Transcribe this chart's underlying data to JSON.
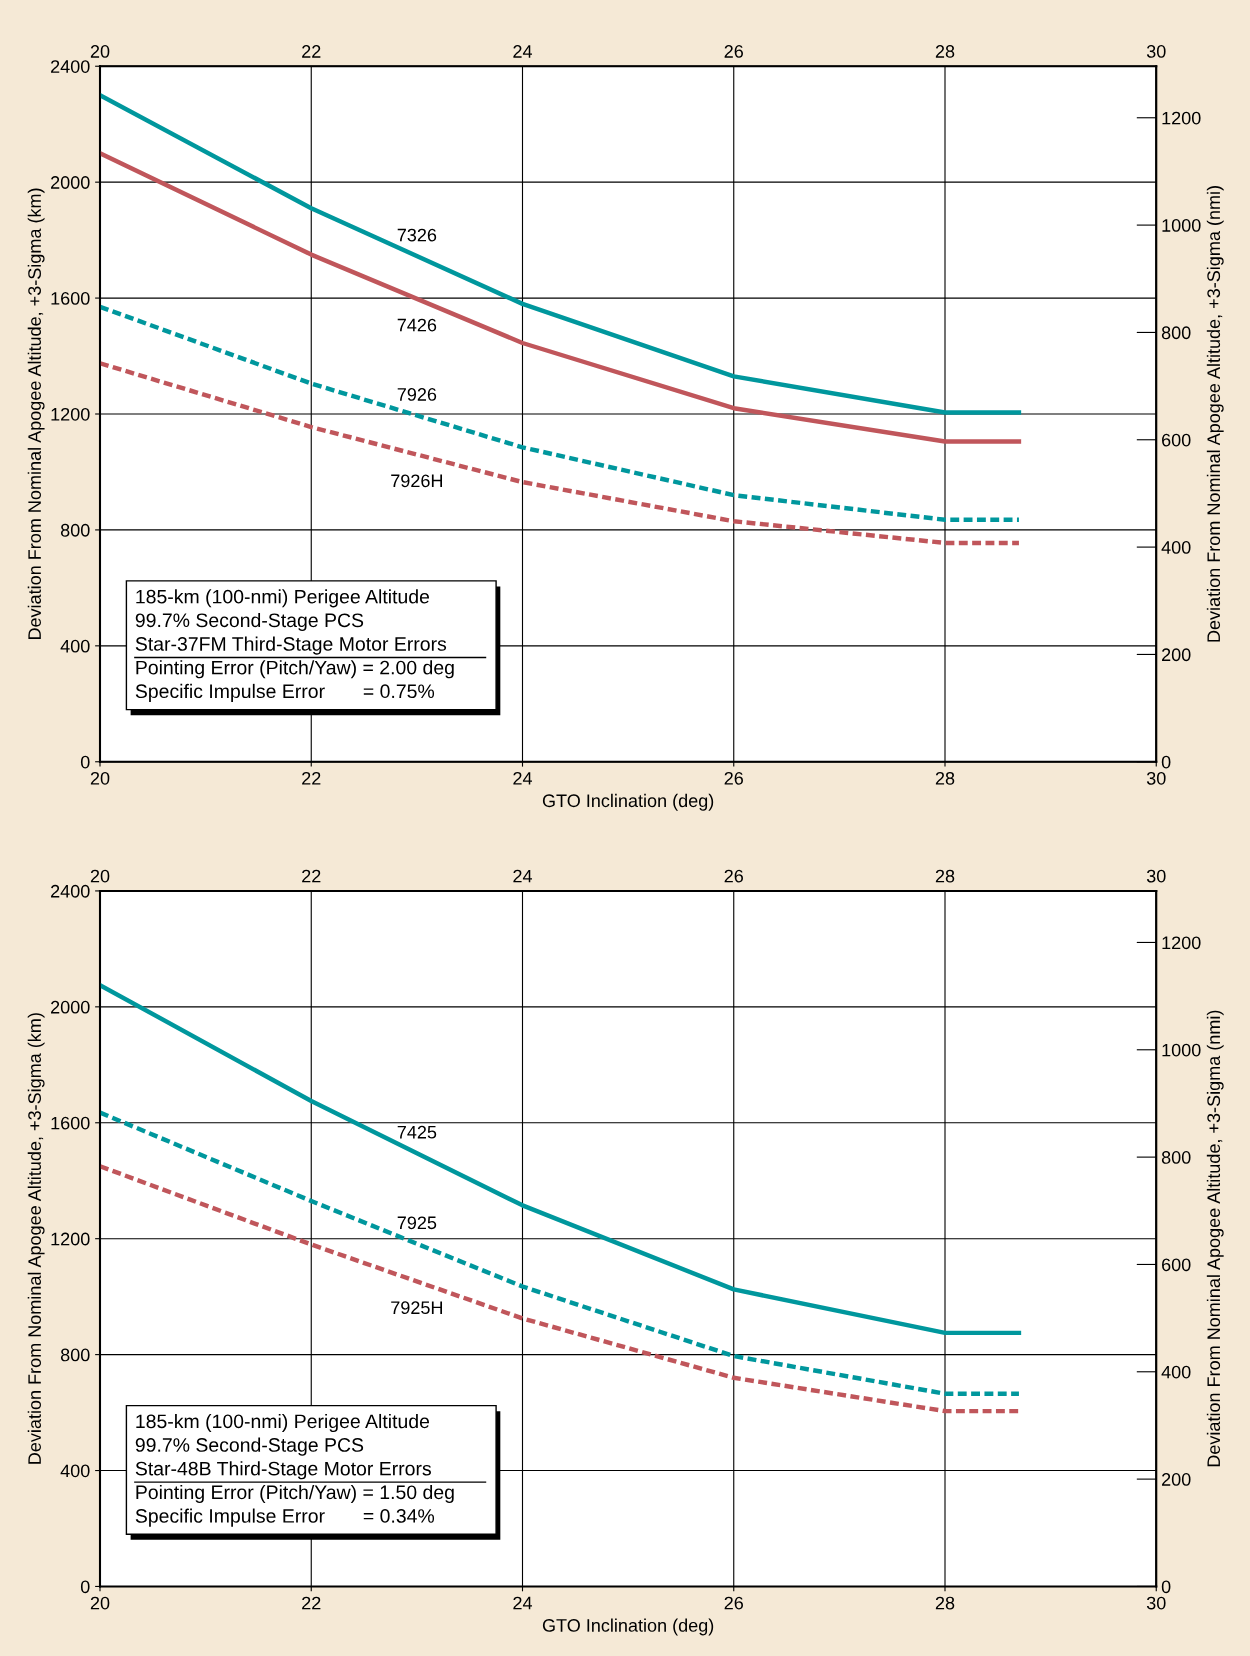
{
  "chart_data": [
    {
      "type": "line",
      "xlabel": "GTO Inclination (deg)",
      "ylabel": "Deviation From Nominal Apogee Altitude, +3-Sigma (km)",
      "y2label": "Deviation From Nominal Apogee Altitude, +3-Sigma (nmi)",
      "xlim": [
        20,
        30
      ],
      "xticks": [
        20,
        22,
        24,
        26,
        28,
        30
      ],
      "x2lim": [
        20,
        30
      ],
      "x2ticks": [
        20,
        22,
        24,
        26,
        28,
        30
      ],
      "ylim": [
        0,
        2400
      ],
      "yticks": [
        0,
        400,
        800,
        1200,
        1600,
        2000,
        2400
      ],
      "y2lim": [
        0,
        1296
      ],
      "y2ticks": [
        0,
        200,
        400,
        600,
        800,
        1000,
        1200
      ],
      "grid": true,
      "legend": false,
      "annotations": [
        "185-km (100-nmi) Perigee Altitude",
        "99.7% Second-Stage PCS",
        "Star-37FM Third-Stage Motor Errors",
        "Pointing Error (Pitch/Yaw) = 2.00 deg",
        "Specific Impulse Error       = 0.75%"
      ],
      "series": [
        {
          "name": "7326",
          "color": "#00979d",
          "line_style": "solid",
          "x": [
            20,
            22,
            24,
            26,
            28,
            28.7
          ],
          "values": [
            2300,
            1910,
            1580,
            1330,
            1205,
            1205
          ]
        },
        {
          "name": "7426",
          "color": "#c0565b",
          "line_style": "solid",
          "x": [
            20,
            22,
            24,
            26,
            28,
            28.7
          ],
          "values": [
            2100,
            1750,
            1445,
            1220,
            1105,
            1105
          ]
        },
        {
          "name": "7926",
          "color": "#00979d",
          "line_style": "dashed",
          "x": [
            20,
            22,
            24,
            26,
            28,
            28.7
          ],
          "values": [
            1570,
            1305,
            1085,
            920,
            835,
            835
          ]
        },
        {
          "name": "7926H",
          "color": "#c0565b",
          "line_style": "dashed",
          "x": [
            20,
            22,
            24,
            26,
            28,
            28.7
          ],
          "values": [
            1375,
            1155,
            965,
            830,
            755,
            755
          ]
        }
      ]
    },
    {
      "type": "line",
      "xlabel": "GTO Inclination (deg)",
      "ylabel": "Deviation From Nominal Apogee Altitude, +3-Sigma (km)",
      "y2label": "Deviation From Nominal Apogee Altitude, +3-Sigma (nmi)",
      "xlim": [
        20,
        30
      ],
      "xticks": [
        20,
        22,
        24,
        26,
        28,
        30
      ],
      "x2lim": [
        20,
        30
      ],
      "x2ticks": [
        20,
        22,
        24,
        26,
        28,
        30
      ],
      "ylim": [
        0,
        2400
      ],
      "yticks": [
        0,
        400,
        800,
        1200,
        1600,
        2000,
        2400
      ],
      "y2lim": [
        0,
        1296
      ],
      "y2ticks": [
        0,
        200,
        400,
        600,
        800,
        1000,
        1200
      ],
      "grid": true,
      "legend": false,
      "annotations": [
        "185-km (100-nmi) Perigee Altitude",
        "99.7% Second-Stage PCS",
        "Star-48B Third-Stage Motor Errors",
        "Pointing Error (Pitch/Yaw) = 1.50 deg",
        "Specific Impulse Error       = 0.34%"
      ],
      "series": [
        {
          "name": "7425",
          "color": "#00979d",
          "line_style": "solid",
          "x": [
            20,
            22,
            24,
            26,
            28,
            28.7
          ],
          "values": [
            2075,
            1675,
            1315,
            1025,
            875,
            875
          ]
        },
        {
          "name": "7925",
          "color": "#00979d",
          "line_style": "dashed",
          "x": [
            20,
            22,
            24,
            26,
            28,
            28.7
          ],
          "values": [
            1635,
            1330,
            1035,
            795,
            665,
            665
          ]
        },
        {
          "name": "7925H",
          "color": "#c0565b",
          "line_style": "dashed",
          "x": [
            20,
            22,
            24,
            26,
            28,
            28.7
          ],
          "values": [
            1450,
            1180,
            925,
            720,
            605,
            605
          ]
        }
      ]
    }
  ]
}
